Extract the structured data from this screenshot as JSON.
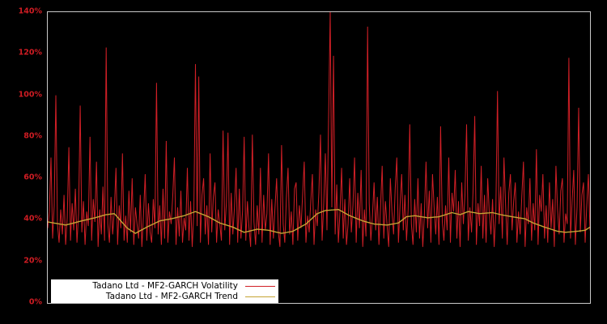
{
  "page": {
    "background": "#000000",
    "plot_border_color": "#c9c9c9",
    "tick_label_color": "#cf1c23"
  },
  "chart_data": {
    "type": "line",
    "title": "",
    "xlabel": "",
    "ylabel": "",
    "grid": false,
    "x_axis": {
      "tick_labels_visible": false
    },
    "y_axis": {
      "min": 0,
      "max": 140,
      "tick_step": 20,
      "unit": "%",
      "ticks": [
        "0%",
        "20%",
        "40%",
        "60%",
        "80%",
        "100%",
        "120%",
        "140%"
      ]
    },
    "legend": {
      "position": "lower-left",
      "background": "#ffffff",
      "text_color": "#000000"
    },
    "series": [
      {
        "name": "Tadano Ltd - MF2-GARCH Volatility",
        "color": "#d11f26",
        "unit": "%",
        "values": [
          36,
          44,
          70,
          31,
          47,
          100,
          38,
          29,
          45,
          33,
          52,
          28,
          41,
          75,
          30,
          48,
          35,
          55,
          29,
          43,
          95,
          34,
          49,
          28,
          44,
          37,
          80,
          30,
          50,
          39,
          68,
          27,
          45,
          33,
          56,
          30,
          123,
          38,
          29,
          51,
          33,
          44,
          65,
          28,
          47,
          36,
          72,
          30,
          42,
          29,
          54,
          34,
          60,
          28,
          46,
          38,
          31,
          52,
          27,
          43,
          62,
          30,
          48,
          34,
          29,
          50,
          36,
          106,
          33,
          47,
          28,
          55,
          31,
          78,
          29,
          44,
          38,
          52,
          70,
          28,
          46,
          32,
          54,
          29,
          41,
          35,
          65,
          30,
          49,
          27,
          44,
          115,
          37,
          109,
          29,
          52,
          60,
          33,
          47,
          28,
          72,
          34,
          51,
          58,
          29,
          45,
          38,
          30,
          83,
          35,
          48,
          82,
          28,
          53,
          33,
          46,
          65,
          29,
          55,
          31,
          44,
          80,
          30,
          49,
          36,
          27,
          81,
          39,
          28,
          47,
          33,
          65,
          29,
          52,
          35,
          43,
          72,
          28,
          50,
          31,
          46,
          60,
          34,
          27,
          76,
          38,
          29,
          51,
          65,
          33,
          44,
          28,
          55,
          58,
          30,
          47,
          36,
          52,
          68,
          29,
          42,
          34,
          49,
          62,
          28,
          45,
          37,
          53,
          81,
          30,
          48,
          72,
          35,
          89,
          140,
          46,
          119,
          33,
          57,
          29,
          44,
          65,
          31,
          50,
          28,
          38,
          60,
          34,
          47,
          70,
          29,
          53,
          36,
          64,
          27,
          45,
          32,
          133,
          48,
          30,
          42,
          58,
          35,
          51,
          28,
          46,
          66,
          31,
          49,
          37,
          27,
          60,
          44,
          33,
          55,
          70,
          29,
          47,
          62,
          35,
          52,
          30,
          45,
          86,
          38,
          28,
          50,
          34,
          60,
          31,
          48,
          27,
          43,
          68,
          36,
          54,
          29,
          62,
          46,
          33,
          51,
          28,
          85,
          39,
          30,
          47,
          35,
          70,
          29,
          53,
          44,
          64,
          31,
          49,
          27,
          58,
          38,
          52,
          86,
          30,
          46,
          34,
          55,
          90,
          28,
          48,
          37,
          66,
          31,
          52,
          29,
          60,
          43,
          33,
          50,
          27,
          45,
          102,
          38,
          56,
          31,
          70,
          47,
          28,
          53,
          62,
          35,
          49,
          58,
          29,
          44,
          33,
          51,
          68,
          27,
          46,
          38,
          60,
          30,
          48,
          35,
          74,
          28,
          52,
          44,
          62,
          31,
          47,
          29,
          58,
          36,
          50,
          27,
          66,
          45,
          33,
          54,
          60,
          29,
          43,
          38,
          118,
          31,
          49,
          64,
          28,
          46,
          94,
          34,
          52,
          58,
          29,
          47,
          62,
          35
        ]
      },
      {
        "name": "Tadano Ltd - MF2-GARCH Trend",
        "color": "#c5a433",
        "unit": "%",
        "keypoints": [
          [
            0,
            39
          ],
          [
            11,
            37.5
          ],
          [
            21,
            39.5
          ],
          [
            29,
            41
          ],
          [
            36,
            42.5
          ],
          [
            41,
            43
          ],
          [
            49,
            36
          ],
          [
            54,
            33.5
          ],
          [
            61,
            36.5
          ],
          [
            69,
            39.5
          ],
          [
            76,
            40.5
          ],
          [
            84,
            42
          ],
          [
            91,
            44
          ],
          [
            99,
            41.5
          ],
          [
            106,
            38.5
          ],
          [
            114,
            36.5
          ],
          [
            121,
            34
          ],
          [
            129,
            35.5
          ],
          [
            136,
            35
          ],
          [
            144,
            33.5
          ],
          [
            151,
            34.5
          ],
          [
            159,
            38
          ],
          [
            166,
            43
          ],
          [
            171,
            44.5
          ],
          [
            179,
            45
          ],
          [
            186,
            42
          ],
          [
            194,
            39.5
          ],
          [
            201,
            38
          ],
          [
            209,
            37.5
          ],
          [
            216,
            38.5
          ],
          [
            221,
            41.5
          ],
          [
            226,
            42
          ],
          [
            234,
            41
          ],
          [
            241,
            41.5
          ],
          [
            249,
            43.5
          ],
          [
            254,
            42.5
          ],
          [
            259,
            44
          ],
          [
            266,
            43
          ],
          [
            274,
            43.5
          ],
          [
            279,
            42.5
          ],
          [
            286,
            41.5
          ],
          [
            294,
            40.5
          ],
          [
            299,
            38.5
          ],
          [
            306,
            36.5
          ],
          [
            314,
            34.5
          ],
          [
            319,
            34
          ],
          [
            326,
            34.5
          ],
          [
            331,
            35
          ],
          [
            334,
            36.5
          ]
        ]
      }
    ]
  }
}
